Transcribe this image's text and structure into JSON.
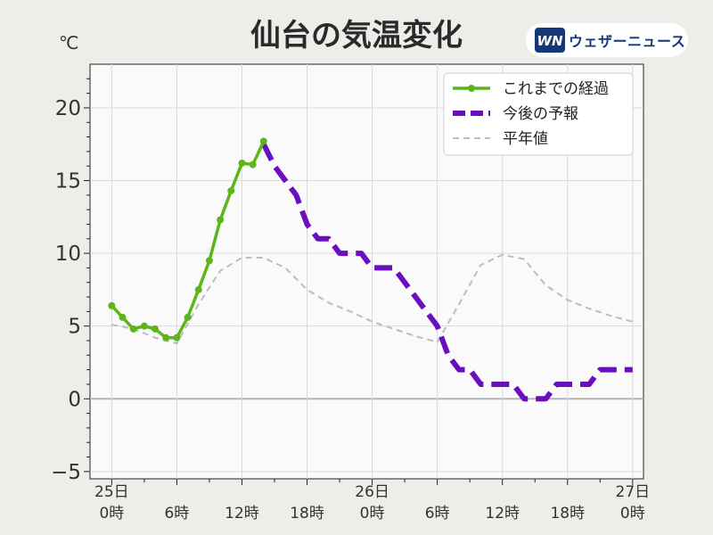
{
  "header": {
    "title": "仙台の気温変化",
    "unit": "℃",
    "brand_mark": "WN",
    "brand_name": "ウェザーニュース"
  },
  "colors": {
    "observed": "#5cb51a",
    "forecast": "#6a0fbf",
    "normal": "#bdbdbd",
    "plot_bg": "#fbfafa",
    "page_bg": "#efedea"
  },
  "chart_data": {
    "type": "line",
    "title": "仙台の気温変化",
    "ylabel": "℃",
    "ylim": [
      -5.5,
      23
    ],
    "xlim": [
      -2,
      49
    ],
    "yticks": [
      -5,
      0,
      5,
      10,
      15,
      20
    ],
    "ytick_labels": [
      "−5",
      "0",
      "5",
      "10",
      "15",
      "20"
    ],
    "xticks": [
      0,
      6,
      12,
      18,
      24,
      30,
      36,
      42,
      48
    ],
    "xtick_labels": [
      [
        "25日",
        "0時"
      ],
      [
        "",
        "6時"
      ],
      [
        "",
        "12時"
      ],
      [
        "",
        "18時"
      ],
      [
        "26日",
        "0時"
      ],
      [
        "",
        "6時"
      ],
      [
        "",
        "12時"
      ],
      [
        "",
        "18時"
      ],
      [
        "27日",
        "0時"
      ]
    ],
    "grid": true,
    "legend_position": "top-right",
    "series": [
      {
        "name": "これまでの経過",
        "style": "solid-markers",
        "x": [
          0,
          1,
          2,
          3,
          4,
          5,
          6,
          7,
          8,
          9,
          10,
          11,
          12,
          13,
          14
        ],
        "y": [
          6.4,
          5.6,
          4.8,
          5.0,
          4.8,
          4.2,
          4.2,
          5.6,
          7.5,
          9.5,
          12.3,
          14.3,
          16.2,
          16.1,
          17.7
        ]
      },
      {
        "name": "今後の予報",
        "style": "thick-dashed-step",
        "x": [
          14,
          15,
          16,
          17,
          18,
          19,
          20,
          21,
          22,
          23,
          24,
          25,
          26,
          27,
          28,
          29,
          30,
          31,
          32,
          33,
          34,
          35,
          36,
          37,
          38,
          39,
          40,
          41,
          42,
          43,
          44,
          45,
          46,
          47,
          48
        ],
        "y": [
          17.5,
          16,
          15,
          14,
          12,
          11,
          11,
          10,
          10,
          10,
          9,
          9,
          9,
          8,
          7,
          6,
          5,
          3,
          2,
          2,
          1,
          1,
          1,
          1,
          0,
          0,
          0,
          1,
          1,
          1,
          1,
          2,
          2,
          2,
          2
        ]
      },
      {
        "name": "平年値",
        "style": "dashed",
        "x": [
          0,
          2,
          4,
          6,
          8,
          10,
          12,
          14,
          16,
          18,
          20,
          22,
          24,
          26,
          28,
          30,
          32,
          34,
          36,
          38,
          40,
          42,
          44,
          46,
          48
        ],
        "y": [
          5.1,
          4.8,
          4.2,
          3.8,
          6.5,
          8.8,
          9.7,
          9.7,
          9.0,
          7.5,
          6.6,
          6.0,
          5.3,
          4.8,
          4.3,
          3.9,
          6.5,
          9.2,
          9.9,
          9.6,
          7.8,
          6.8,
          6.2,
          5.7,
          5.3
        ]
      }
    ]
  }
}
